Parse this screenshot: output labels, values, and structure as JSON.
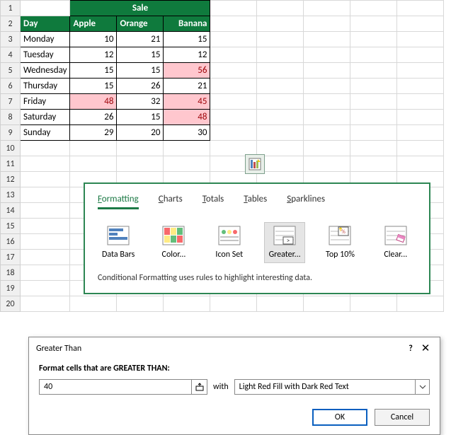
{
  "colors": {
    "header_bg": "#0f7a3d",
    "highlight_fill": "#ffc7ce",
    "highlight_text": "#9c0006",
    "popup_border": "#2d8653"
  },
  "table": {
    "merged_title": "Sale",
    "headers": {
      "day": "Day",
      "apple": "Apple",
      "orange": "Orange",
      "banana": "Banana"
    },
    "rows": [
      {
        "day": "Monday",
        "apple": "10",
        "orange": "21",
        "banana": "15",
        "hl": []
      },
      {
        "day": "Tuesday",
        "apple": "12",
        "orange": "15",
        "banana": "12",
        "hl": []
      },
      {
        "day": "Wednesday",
        "apple": "15",
        "orange": "15",
        "banana": "56",
        "hl": [
          "banana"
        ]
      },
      {
        "day": "Thursday",
        "apple": "15",
        "orange": "26",
        "banana": "21",
        "hl": []
      },
      {
        "day": "Friday",
        "apple": "48",
        "orange": "32",
        "banana": "45",
        "hl": [
          "apple",
          "banana"
        ]
      },
      {
        "day": "Saturday",
        "apple": "26",
        "orange": "15",
        "banana": "48",
        "hl": [
          "banana"
        ]
      },
      {
        "day": "Sunday",
        "apple": "29",
        "orange": "20",
        "banana": "30",
        "hl": []
      }
    ],
    "row_numbers": [
      "1",
      "2",
      "3",
      "4",
      "5",
      "6",
      "7",
      "8",
      "9",
      "10",
      "11",
      "12",
      "13",
      "14",
      "15",
      "16",
      "17",
      "18",
      "19",
      "20"
    ]
  },
  "qa": {
    "tabs": [
      "Formatting",
      "Charts",
      "Totals",
      "Tables",
      "Sparklines"
    ],
    "selected_tab": "Formatting",
    "items": [
      {
        "label": "Data Bars"
      },
      {
        "label": "Color..."
      },
      {
        "label": "Icon Set"
      },
      {
        "label": "Greater..."
      },
      {
        "label": "Top 10%"
      },
      {
        "label": "Clear..."
      }
    ],
    "selected_item": "Greater...",
    "description": "Conditional Formatting uses rules to highlight interesting data."
  },
  "dialog": {
    "title": "Greater Than",
    "label": "Format cells that are GREATER THAN:",
    "value": "40",
    "with_text": "with",
    "format_option": "Light Red Fill with Dark Red Text",
    "ok": "OK",
    "cancel": "Cancel"
  }
}
